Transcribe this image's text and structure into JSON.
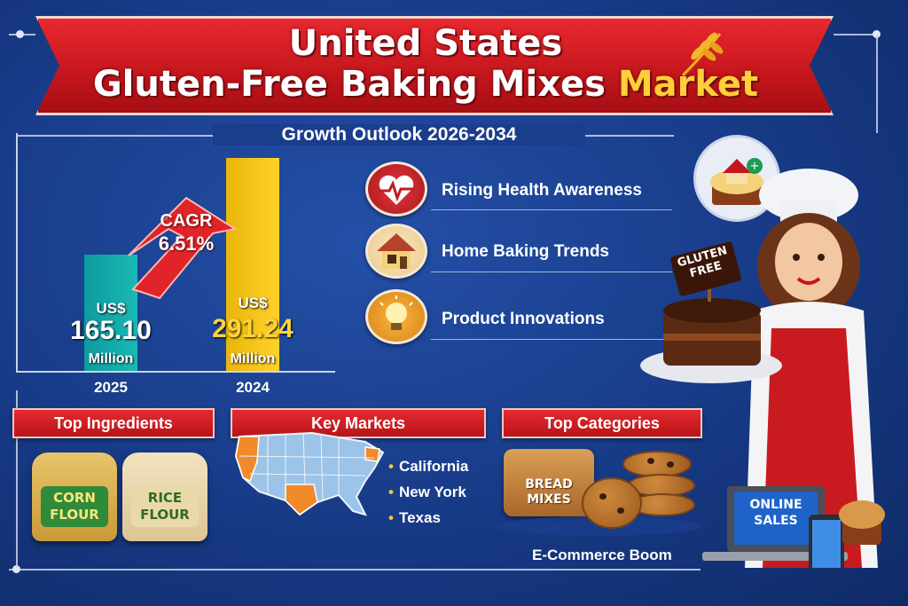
{
  "title": {
    "line1": "United States",
    "line2_main": "Gluten-Free Baking Mixes ",
    "line2_accent": "Market"
  },
  "subtitle": "Growth Outlook 2026-2034",
  "bars": [
    {
      "prefix": "US$",
      "value": "165.10",
      "unit": "Million",
      "year": "2025"
    },
    {
      "prefix": "US$",
      "value": "291.24",
      "unit": "Million",
      "year": "2024"
    }
  ],
  "cagr": {
    "label": "CAGR",
    "value": "6.51%"
  },
  "drivers": [
    {
      "label": "Rising Health Awareness",
      "icon": "heart-pulse-icon"
    },
    {
      "label": "Home Baking Trends",
      "icon": "house-icon"
    },
    {
      "label": "Product Innovations",
      "icon": "lightbulb-icon"
    }
  ],
  "sections": {
    "ingredients": {
      "title": "Top Ingredients",
      "items": [
        {
          "line1": "CORN",
          "line2": "FLOUR"
        },
        {
          "line1": "RICE",
          "line2": "FLOUR"
        }
      ]
    },
    "markets": {
      "title": "Key Markets",
      "items": [
        "California",
        "New York",
        "Texas"
      ]
    },
    "categories": {
      "title": "Top Categories",
      "bread_line1": "BREAD",
      "bread_line2": "MIXES"
    }
  },
  "sign": {
    "line1": "GLUTEN",
    "line2": "FREE"
  },
  "online": {
    "line1": "ONLINE",
    "line2": "SALES"
  },
  "ecommerce_caption": "E-Commerce Boom",
  "colors": {
    "background": "#173a86",
    "banner_red": "#c4161c",
    "accent_gold": "#ffce3a",
    "teal_bar": "#19b9b3",
    "gold_bar": "#ffd22a"
  }
}
